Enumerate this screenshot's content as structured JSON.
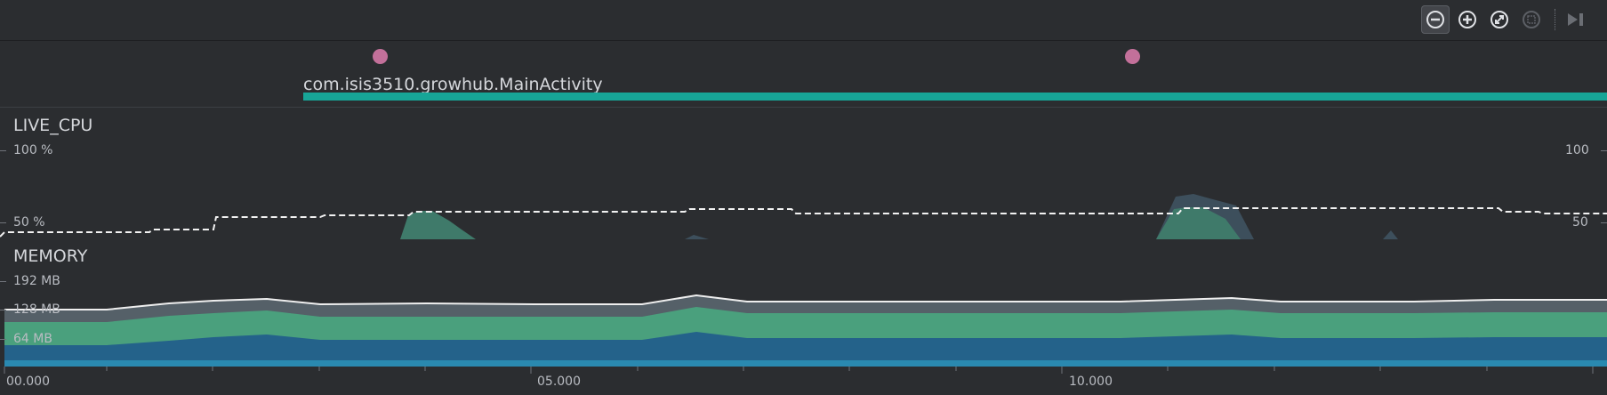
{
  "toolbar": {
    "buttons": [
      {
        "name": "zoom-out",
        "icon": "minus-circle-icon",
        "active": true
      },
      {
        "name": "zoom-in",
        "icon": "plus-circle-icon",
        "active": false
      },
      {
        "name": "reset-zoom",
        "icon": "fit-icon",
        "active": false
      },
      {
        "name": "attach-to-selection",
        "icon": "selection-icon",
        "active": false,
        "disabled": true
      },
      {
        "name": "jump-to-live",
        "icon": "skip-to-end-icon",
        "active": false,
        "disabled": true
      }
    ]
  },
  "events": {
    "activity_label": "com.isis3510.growhub.MainActivity",
    "dot_color": "#c3709a",
    "bar_color": "#17a597"
  },
  "cpu": {
    "title": "LIVE_CPU",
    "left_labels": [
      "100 %",
      "50 %"
    ],
    "right_labels": [
      "100",
      "50"
    ]
  },
  "memory": {
    "title": "MEMORY",
    "labels": [
      "192 MB",
      "128 MB",
      "64 MB"
    ]
  },
  "timeline": {
    "labels": [
      "00.000",
      "05.000",
      "10.000"
    ]
  },
  "colors": {
    "background": "#2b2d30",
    "cpu_fill": "#3f7a6a",
    "cpu_other": "#3d4f5c",
    "mem_top": "#556068",
    "mem_green": "#4aa07d",
    "mem_blue": "#24628a",
    "mem_bottom": "#2a89b0"
  }
}
